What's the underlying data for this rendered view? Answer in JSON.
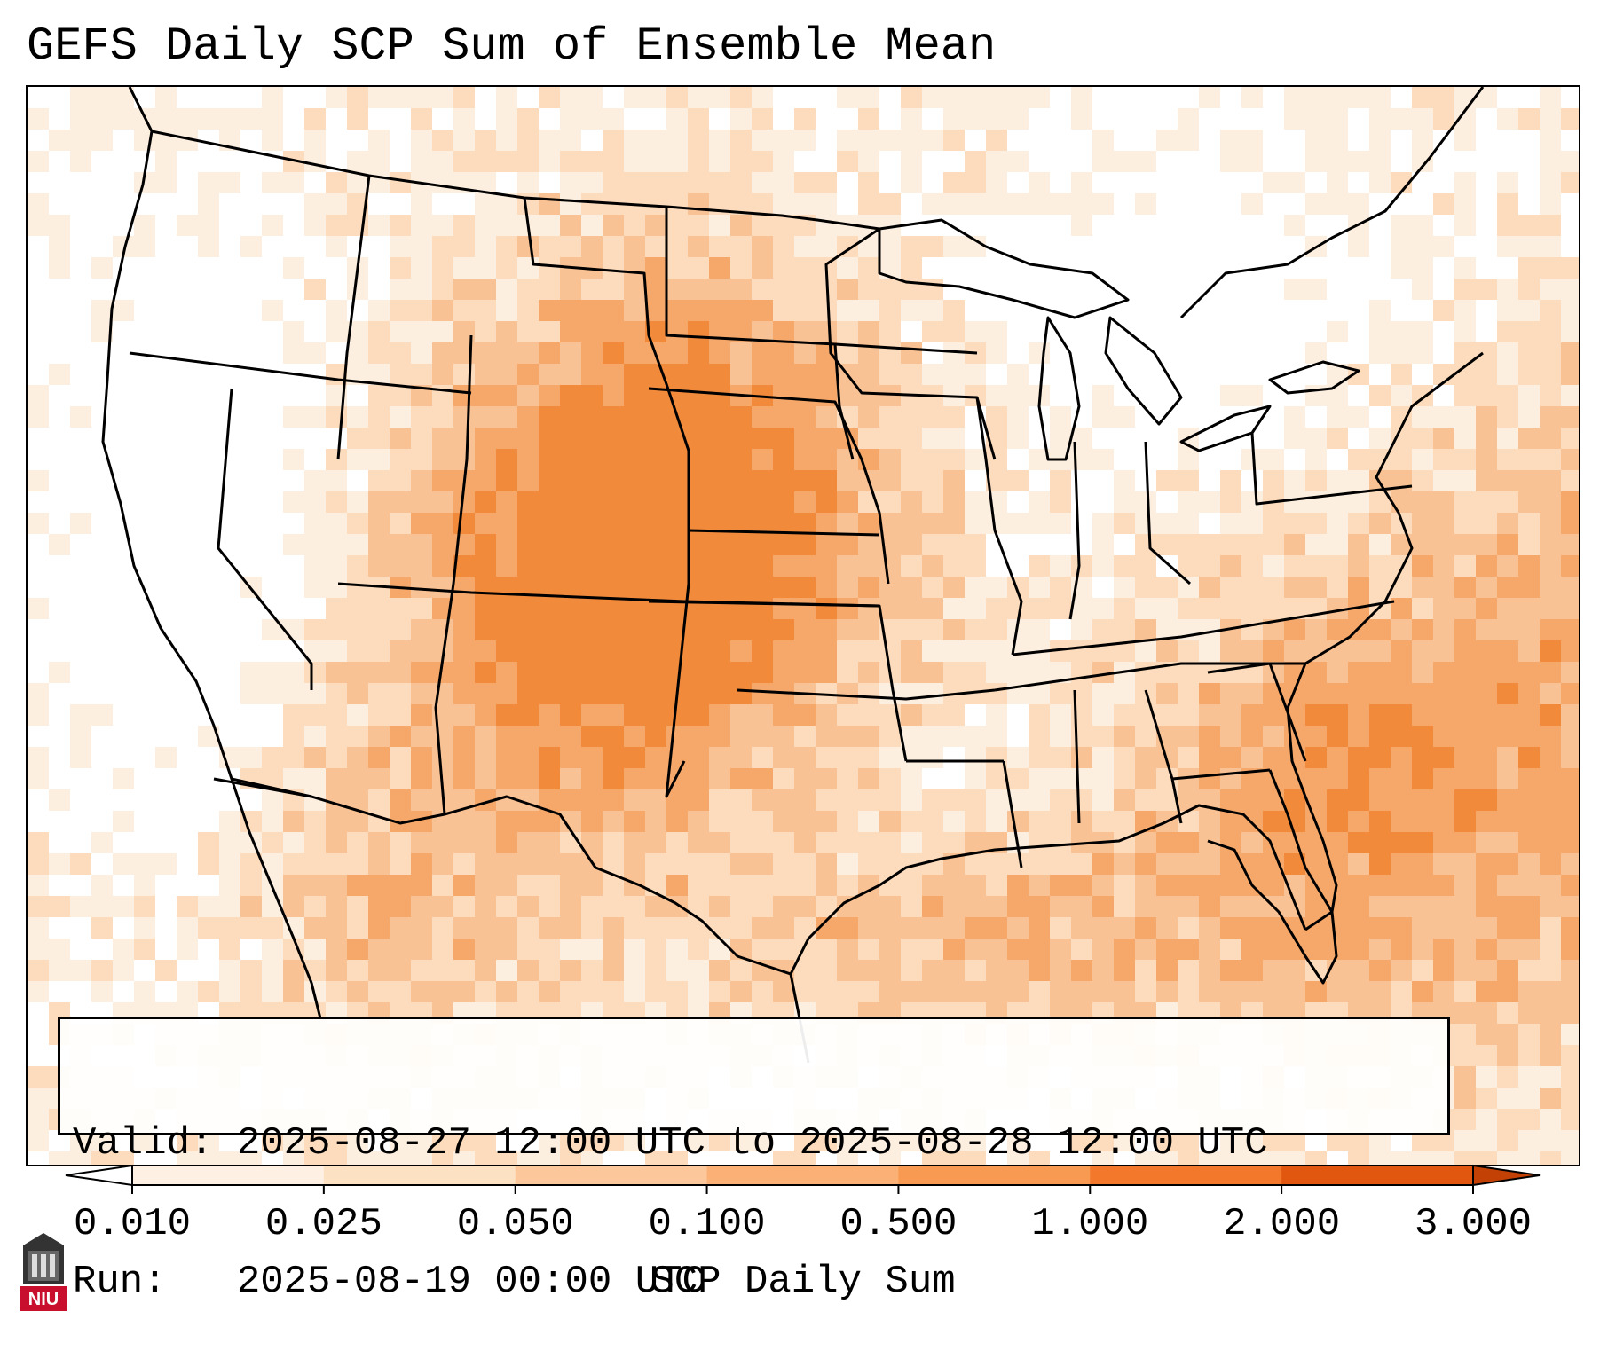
{
  "title": "GEFS Daily SCP Sum of Ensemble Mean",
  "info": {
    "valid": "Valid: 2025-08-27 12:00 UTC to 2025-08-28 12:00 UTC",
    "run": "Run:   2025-08-19 00:00 UTC"
  },
  "colorbar": {
    "label": "SCP Daily Sum",
    "ticks": [
      "0.010",
      "0.025",
      "0.050",
      "0.100",
      "0.500",
      "1.000",
      "2.000",
      "3.000"
    ],
    "colors": [
      "#fef0e2",
      "#fde1c3",
      "#fcc79a",
      "#fbb076",
      "#f89a52",
      "#f3782c",
      "#e2570f",
      "#c44106"
    ],
    "extend": "both"
  },
  "logo": {
    "icon": "niu-logo-icon",
    "text": "NIU",
    "color": "#c8102e"
  },
  "map": {
    "region": "Continental United States",
    "fill_colors": {
      "faint": "#fdefe0",
      "light": "#fcdcbc",
      "medium": "#f9c294",
      "strong": "#f6a86a",
      "peak": "#f28a3c"
    },
    "border_color": "#000000"
  }
}
